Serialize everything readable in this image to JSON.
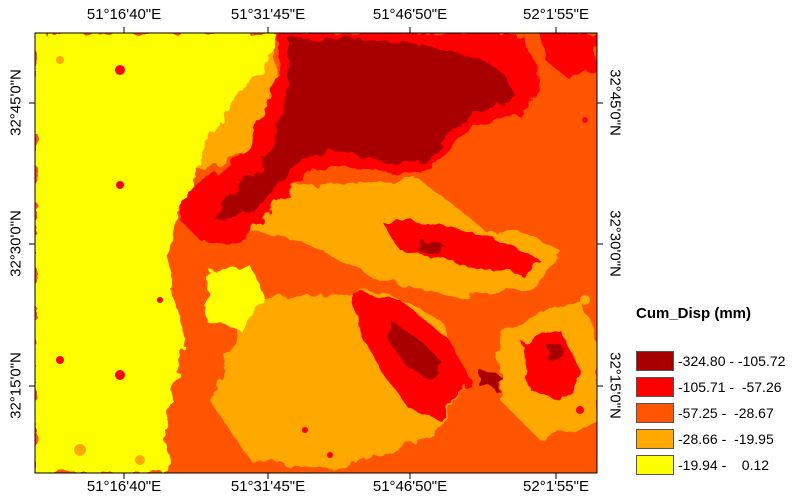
{
  "map": {
    "top_ticks": [
      "51°16'40\"E",
      "51°31'45\"E",
      "51°46'50\"E",
      "52°1'55\"E"
    ],
    "bottom_ticks": [
      "51°16'40\"E",
      "51°31'45\"E",
      "51°46'50\"E",
      "52°1'55\"E"
    ],
    "left_ticks": [
      "32°45'0\"N",
      "32°30'0\"N",
      "32°15'0\"N"
    ],
    "right_ticks": [
      "32°45'0\"N",
      "32°30'0\"N",
      "32°15'0\"N"
    ],
    "colors": {
      "class1": "#a80000",
      "class2": "#ff0000",
      "class3": "#ff5500",
      "class4": "#ffa800",
      "class5": "#ffff00"
    }
  },
  "legend": {
    "title": "Cum_Disp (mm)",
    "items": [
      {
        "label": "-324.80 - -105.72",
        "color": "#a80000"
      },
      {
        "label": "-105.71 -  -57.26",
        "color": "#ff0000"
      },
      {
        "label": "-57.25 -  -28.67",
        "color": "#ff5500"
      },
      {
        "label": "-28.66 -  -19.95",
        "color": "#ffa800"
      },
      {
        "label": "-19.94 -    0.12",
        "color": "#ffff00"
      }
    ]
  }
}
